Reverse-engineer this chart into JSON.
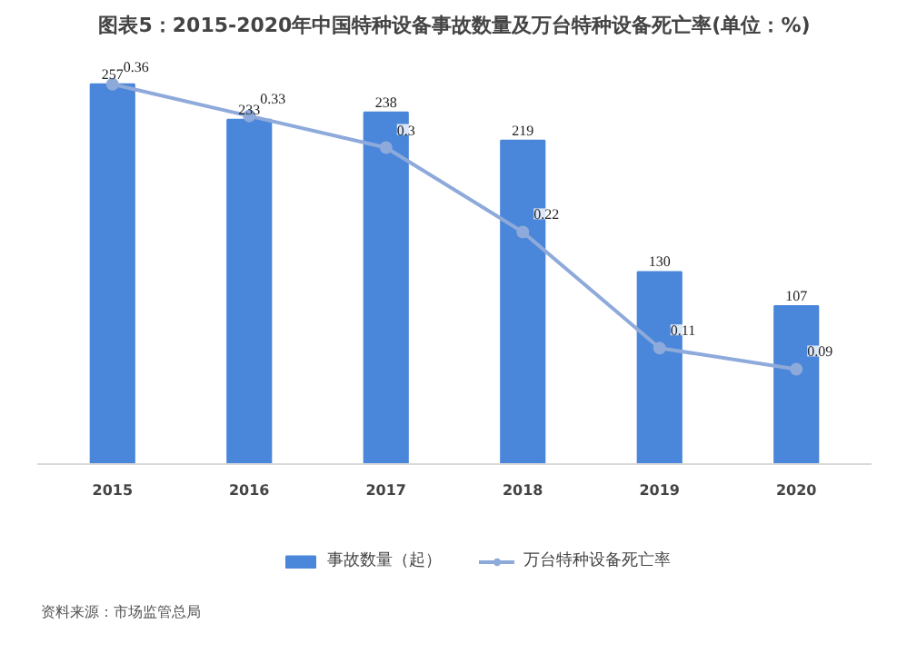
{
  "chart_data": {
    "type": "bar",
    "title": "图表5：2015-2020年中国特种设备事故数量及万台特种设备死亡率(单位：%)",
    "categories": [
      "2015",
      "2016",
      "2017",
      "2018",
      "2019",
      "2020"
    ],
    "series": [
      {
        "name": "事故数量（起）",
        "color": "#4a86d9",
        "values": [
          257,
          233,
          238,
          219,
          130,
          107
        ]
      },
      {
        "name": "万台特种设备死亡率",
        "type": "line",
        "axis": "y2",
        "color": "#8eaadb",
        "values": [
          0.36,
          0.33,
          0.3,
          0.22,
          0.11,
          0.09
        ]
      }
    ],
    "tick_labels": "x",
    "grid": false,
    "legend": "bottom",
    "marker": "circle",
    "line_style": "solid",
    "data_labels": true,
    "annotations": [
      "资料来源：市场监管总局"
    ]
  }
}
